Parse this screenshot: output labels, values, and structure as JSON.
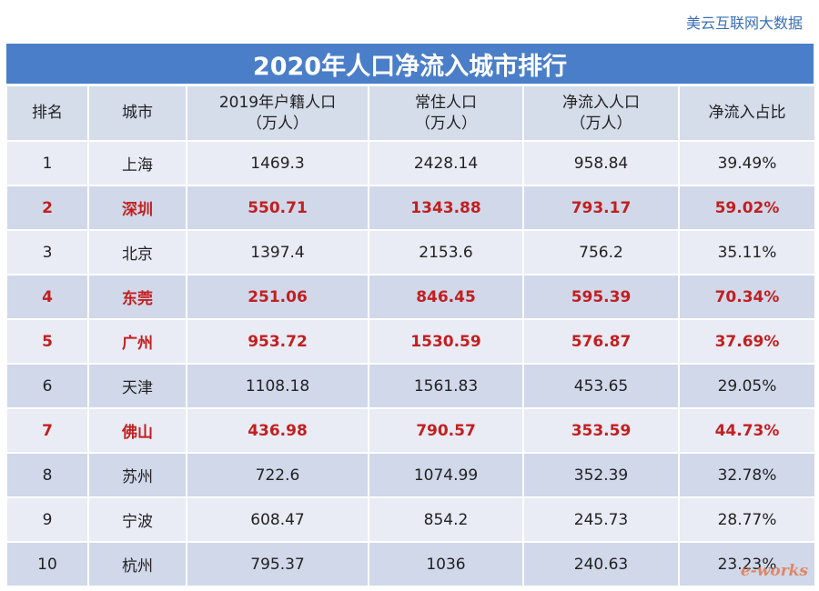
{
  "brand": "美云互联网大数据",
  "title": "2020年人口净流入城市排行",
  "headers": [
    "排名",
    "城市",
    "2019年户籍人口\n（万人）",
    "常住人口\n（万人）",
    "净流入人口\n（万人）",
    "净流入占比"
  ],
  "rows": [
    {
      "rank": "1",
      "city": "上海",
      "hukou": "1469.3",
      "resident": "2428.14",
      "net": "958.84",
      "ratio": "39.49%",
      "highlight": false
    },
    {
      "rank": "2",
      "city": "深圳",
      "hukou": "550.71",
      "resident": "1343.88",
      "net": "793.17",
      "ratio": "59.02%",
      "highlight": true
    },
    {
      "rank": "3",
      "city": "北京",
      "hukou": "1397.4",
      "resident": "2153.6",
      "net": "756.2",
      "ratio": "35.11%",
      "highlight": false
    },
    {
      "rank": "4",
      "city": "东莞",
      "hukou": "251.06",
      "resident": "846.45",
      "net": "595.39",
      "ratio": "70.34%",
      "highlight": true
    },
    {
      "rank": "5",
      "city": "广州",
      "hukou": "953.72",
      "resident": "1530.59",
      "net": "576.87",
      "ratio": "37.69%",
      "highlight": true
    },
    {
      "rank": "6",
      "city": "天津",
      "hukou": "1108.18",
      "resident": "1561.83",
      "net": "453.65",
      "ratio": "29.05%",
      "highlight": false
    },
    {
      "rank": "7",
      "city": "佛山",
      "hukou": "436.98",
      "resident": "790.57",
      "net": "353.59",
      "ratio": "44.73%",
      "highlight": true
    },
    {
      "rank": "8",
      "city": "苏州",
      "hukou": "722.6",
      "resident": "1074.99",
      "net": "352.39",
      "ratio": "32.78%",
      "highlight": false
    },
    {
      "rank": "9",
      "city": "宁波",
      "hukou": "608.47",
      "resident": "854.2",
      "net": "245.73",
      "ratio": "28.77%",
      "highlight": false
    },
    {
      "rank": "10",
      "city": "杭州",
      "hukou": "795.37",
      "resident": "1036",
      "net": "240.63",
      "ratio": "23.23%",
      "highlight": false
    }
  ],
  "watermark": "e-works",
  "colors": {
    "title_bg": "#4a7ec8",
    "highlight_text": "#c21f1f",
    "row_light": "#e9ebf5",
    "row_dark": "#d0d8ea"
  }
}
